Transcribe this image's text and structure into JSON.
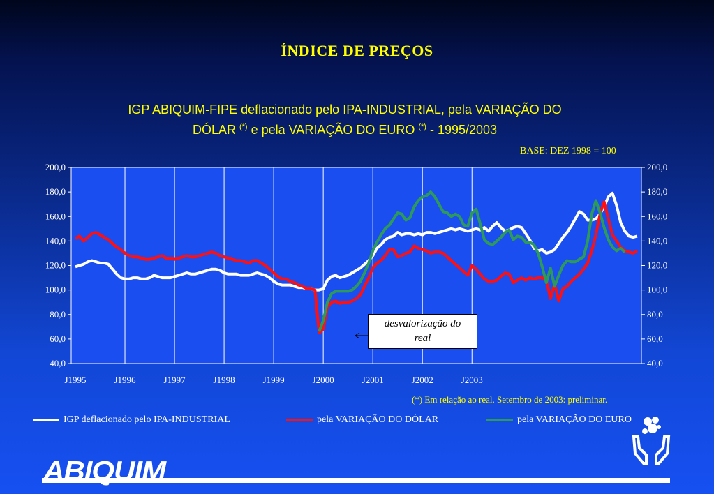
{
  "header": {
    "title": "ÍNDICE DE PREÇOS",
    "subtitle_line1": "IGP ABIQUIM-FIPE deflacionado pelo IPA-INDUSTRIAL, pela VARIAÇÃO DO",
    "subtitle_line2_a": "DÓLAR ",
    "subtitle_line2_b": " e pela VARIAÇÃO DO EURO ",
    "subtitle_line2_c": " - 1995/2003",
    "asterisk": "(*)"
  },
  "base_label": "BASE:  DEZ 1998 = 100",
  "footnote": "(*) Em relação ao real.    Setembro de 2003: preliminar.",
  "legend": [
    {
      "label": "IGP deflacionado pelo IPA-INDUSTRIAL",
      "color": "#ffffff"
    },
    {
      "label": "pela VARIAÇÃO DO DÓLAR",
      "color": "#ff1010"
    },
    {
      "label": "pela VARIAÇÃO DO EURO",
      "color": "#2e9a5a"
    }
  ],
  "annotation": {
    "line1": "desvalorização do",
    "line2": "real"
  },
  "logo": {
    "text": "ABIQUIM"
  },
  "chart_data": {
    "type": "line",
    "x_tick_labels": [
      "J1995",
      "J1996",
      "J1997",
      "J1998",
      "J1999",
      "J2000",
      "J2001",
      "J2002",
      "J2003"
    ],
    "y_ticks": [
      "40,0",
      "60,0",
      "80,0",
      "100,0",
      "120,0",
      "140,0",
      "160,0",
      "180,0",
      "200,0"
    ],
    "ylim": [
      40,
      200
    ],
    "x_start": "1995-01",
    "series": [
      {
        "name": "IGP deflacionado pelo IPA-INDUSTRIAL",
        "color": "#ffffff",
        "values": [
          119,
          120,
          121,
          123,
          124,
          123,
          122,
          122,
          121,
          117,
          113,
          110,
          109,
          109,
          110,
          110,
          109,
          109,
          110,
          112,
          111,
          110,
          110,
          110,
          111,
          112,
          113,
          114,
          113,
          113,
          114,
          115,
          116,
          117,
          117,
          116,
          114,
          113,
          113,
          113,
          112,
          112,
          112,
          113,
          114,
          113,
          112,
          110,
          107,
          105,
          104,
          104,
          104,
          103,
          102,
          102,
          101,
          101,
          100,
          100,
          101,
          108,
          111,
          112,
          110,
          111,
          112,
          114,
          116,
          118,
          121,
          124,
          128,
          134,
          137,
          141,
          143,
          144,
          147,
          145,
          146,
          146,
          145,
          146,
          145,
          147,
          147,
          146,
          147,
          148,
          149,
          150,
          149,
          150,
          149,
          148,
          149,
          150,
          149,
          151,
          148,
          152,
          155,
          151,
          148,
          149,
          151,
          152,
          151,
          146,
          141,
          134,
          132,
          133,
          130,
          131,
          133,
          138,
          143,
          147,
          152,
          158,
          164,
          162,
          157,
          157,
          158,
          162,
          168,
          176,
          179,
          169,
          155,
          148,
          144,
          143,
          144
        ]
      },
      {
        "name": "pela VARIAÇÃO DO DÓLAR",
        "color": "#ff1010",
        "values": [
          142,
          144,
          140,
          143,
          146,
          147,
          145,
          143,
          141,
          138,
          135,
          133,
          130,
          128,
          127,
          127,
          126,
          125,
          125,
          126,
          127,
          128,
          126,
          126,
          125,
          126,
          127,
          128,
          127,
          127,
          128,
          129,
          130,
          131,
          130,
          128,
          127,
          126,
          125,
          124,
          124,
          123,
          122,
          124,
          124,
          122,
          120,
          117,
          114,
          111,
          109,
          109,
          107,
          106,
          104,
          103,
          101,
          101,
          100,
          65,
          68,
          86,
          90,
          91,
          89,
          90,
          90,
          91,
          93,
          96,
          103,
          110,
          118,
          122,
          124,
          128,
          133,
          133,
          127,
          128,
          130,
          131,
          136,
          134,
          133,
          132,
          130,
          131,
          131,
          130,
          127,
          124,
          121,
          118,
          115,
          112,
          120,
          117,
          113,
          109,
          107,
          107,
          108,
          111,
          114,
          113,
          106,
          108,
          110,
          108,
          110,
          109,
          110,
          110,
          108,
          93,
          105,
          91,
          101,
          103,
          107,
          110,
          113,
          117,
          122,
          132,
          145,
          162,
          172,
          158,
          145,
          140,
          135,
          132,
          131,
          130,
          132
        ]
      },
      {
        "name": "pela VARIAÇÃO DO EURO",
        "color": "#2e9a5a",
        "values": [
          null,
          null,
          null,
          null,
          null,
          null,
          null,
          null,
          null,
          null,
          null,
          null,
          null,
          null,
          null,
          null,
          null,
          null,
          null,
          null,
          null,
          null,
          null,
          null,
          null,
          null,
          null,
          null,
          null,
          null,
          null,
          null,
          null,
          null,
          null,
          null,
          null,
          null,
          null,
          null,
          null,
          null,
          null,
          null,
          null,
          null,
          null,
          null,
          null,
          null,
          null,
          null,
          null,
          null,
          null,
          null,
          null,
          null,
          null,
          66,
          75,
          90,
          97,
          99,
          99,
          99,
          99,
          100,
          103,
          107,
          114,
          122,
          132,
          139,
          145,
          150,
          153,
          158,
          163,
          162,
          157,
          159,
          168,
          173,
          176,
          177,
          180,
          176,
          170,
          164,
          163,
          160,
          162,
          160,
          153,
          152,
          163,
          166,
          154,
          141,
          138,
          137,
          140,
          143,
          147,
          149,
          141,
          144,
          143,
          139,
          139,
          137,
          130,
          119,
          106,
          118,
          103,
          112,
          120,
          124,
          123,
          123,
          125,
          127,
          140,
          162,
          173,
          163,
          151,
          141,
          135,
          132,
          134,
          131
        ]
      }
    ]
  }
}
